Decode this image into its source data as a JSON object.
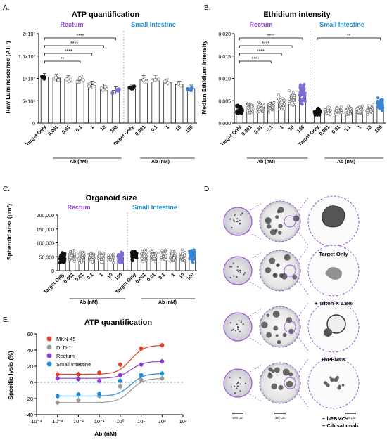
{
  "colors": {
    "rectum": "#8b3fd1",
    "small_intestine": "#1f8fd6",
    "mkn45": "#e0412a",
    "dld1": "#9a9a9a",
    "rectum_point": "#7a6ed6",
    "si_point": "#3b86d4",
    "black": "#111111",
    "grey": "#888888"
  },
  "panel_labels": {
    "a": "A.",
    "b": "B.",
    "c": "C.",
    "d": "D.",
    "e": "E."
  },
  "shared": {
    "categories": [
      "Target Only",
      "0.001",
      "0.01",
      "0.1",
      "1",
      "10",
      "100"
    ],
    "group_rectum": "Rectum",
    "group_si": "Small Intestine",
    "ab_label": "Ab (nM)"
  },
  "chart_data": [
    {
      "id": "A",
      "type": "bar",
      "title": "ATP quantification",
      "ylabel": "Raw Luminescence (ATP)",
      "ylim": [
        0,
        20000000
      ],
      "yticks": [
        "0",
        "5×10⁶",
        "1×10⁷",
        "1.5×10⁷",
        "2×10⁷"
      ],
      "ytick_values": [
        0,
        5000000,
        10000000,
        15000000,
        20000000
      ],
      "rectum_categories": [
        "Target Only",
        "0.001",
        "0.01",
        "0.1",
        "1",
        "10",
        "100"
      ],
      "rectum_values": [
        10300000,
        10100000,
        9800000,
        9600000,
        8600000,
        7900000,
        7300000
      ],
      "si_categories": [
        "Target Only",
        "0.001",
        "0.1",
        "1",
        "10",
        "100"
      ],
      "si_values": [
        7700000,
        9800000,
        9900000,
        9100000,
        8600000,
        7700000
      ],
      "significance": [
        "****",
        "****",
        "****",
        "**"
      ]
    },
    {
      "id": "B",
      "type": "bar",
      "title": "Ethidium intensity",
      "ylabel": "Median Ethidium intensity",
      "ylim": [
        0,
        0.02
      ],
      "yticks": [
        "0.000",
        "0.005",
        "0.010",
        "0.015",
        "0.020"
      ],
      "ytick_values": [
        0,
        0.005,
        0.01,
        0.015,
        0.02
      ],
      "rectum_categories": [
        "Target Only",
        "0.001",
        "0.01",
        "0.1",
        "1",
        "10",
        "100"
      ],
      "rectum_values": [
        0.003,
        0.0034,
        0.0034,
        0.0038,
        0.0046,
        0.0055,
        0.0065
      ],
      "si_categories": [
        "Target Only",
        "0.001",
        "0.01",
        "0.1",
        "1",
        "10",
        "100"
      ],
      "si_values": [
        0.0025,
        0.0027,
        0.0028,
        0.0028,
        0.0029,
        0.003,
        0.0042
      ],
      "significance": [
        "****",
        "****",
        "****",
        "****",
        "**"
      ]
    },
    {
      "id": "C",
      "type": "bar",
      "title": "Organoid size",
      "ylabel": "Spheroid area (μm²)",
      "ylim": [
        0,
        200000
      ],
      "yticks": [
        "0",
        "50,000",
        "100,000",
        "150,000",
        "200,000"
      ],
      "ytick_values": [
        0,
        50000,
        100000,
        150000,
        200000
      ],
      "rectum_categories": [
        "Target Only",
        "0.001",
        "0.01",
        "0.1",
        "1",
        "10",
        "100"
      ],
      "rectum_values": [
        45000,
        52000,
        50000,
        50000,
        48000,
        48000,
        47000
      ],
      "si_categories": [
        "Target Only",
        "0.001",
        "0.01",
        "0.1",
        "1",
        "10",
        "100"
      ],
      "si_values": [
        55000,
        55000,
        55000,
        55000,
        52000,
        50000,
        55000
      ]
    },
    {
      "id": "E",
      "type": "line",
      "title": "ATP quantification",
      "xlabel": "Ab (nM)",
      "ylabel": "Specific lysis (%)",
      "xscale": "log",
      "xlim": [
        0.0001,
        1000
      ],
      "ylim": [
        -40,
        60
      ],
      "xticks": [
        "10⁻⁴",
        "10⁻³",
        "10⁻²",
        "10⁻¹",
        "10⁰",
        "10¹",
        "10²",
        "10³"
      ],
      "yticks": [
        "-40",
        "-20",
        "0",
        "20",
        "40",
        "60"
      ],
      "ytick_values": [
        -40,
        -20,
        0,
        20,
        40,
        60
      ],
      "x": [
        0.001,
        0.01,
        0.1,
        1,
        10,
        100
      ],
      "legend_position": "top-left",
      "series": [
        {
          "name": "MKN-45",
          "values": [
            10,
            10,
            12,
            22,
            42,
            46
          ]
        },
        {
          "name": "DLD-1",
          "values": [
            -25,
            -22,
            -17,
            -5,
            3,
            5
          ]
        },
        {
          "name": "Rectum",
          "values": [
            5,
            4,
            2,
            9,
            22,
            26
          ]
        },
        {
          "name": "Small Intestine",
          "values": [
            -17,
            -15,
            -14,
            2,
            9,
            11
          ]
        }
      ]
    }
  ],
  "panel_d": {
    "captions": [
      "Target Only",
      "+ Triton-X 0.8%",
      "+hPBMCs",
      "+ hPBMCs",
      "+ Cibisatamab"
    ],
    "scalebars": [
      "500 μm",
      "400 μm",
      "100 μm"
    ]
  }
}
